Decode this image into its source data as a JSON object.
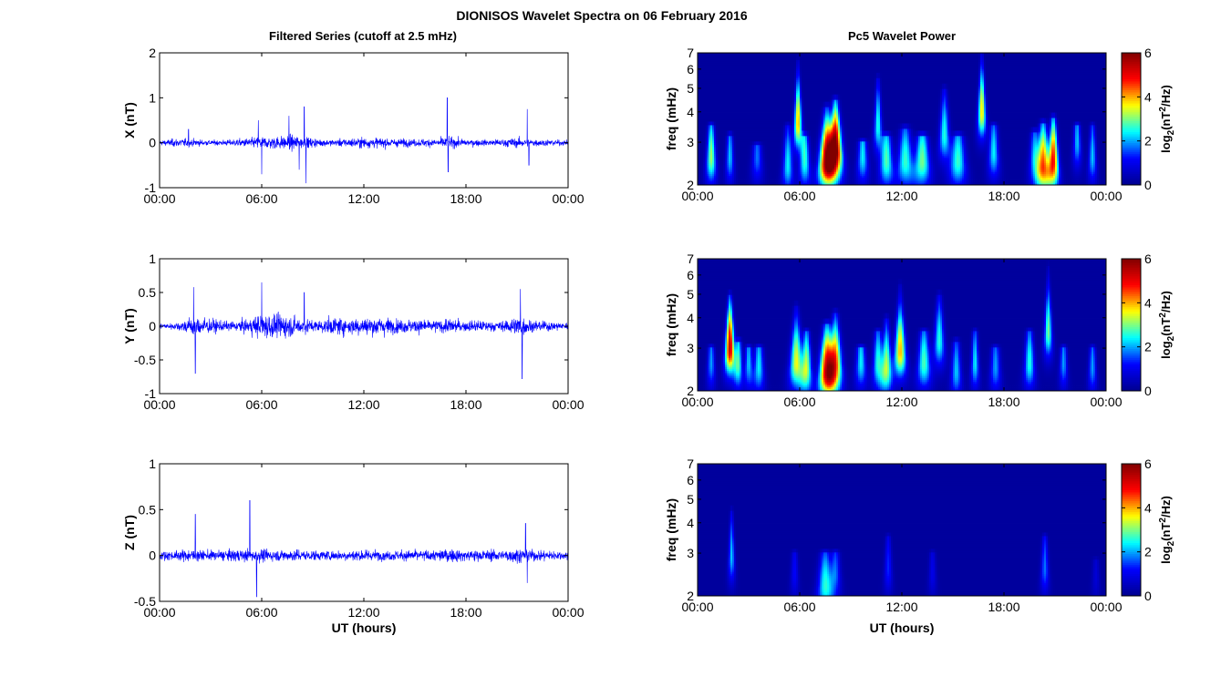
{
  "figure": {
    "title": "DIONISOS Wavelet Spectra on 06 February 2016",
    "left_column_title": "Filtered Series (cutoff at 2.5 mHz)",
    "right_column_title": "Pc5 Wavelet Power"
  },
  "colors": {
    "trace": "#0000ff",
    "colormap": [
      "#00008f",
      "#0000ff",
      "#00ffff",
      "#ffff00",
      "#ff0000",
      "#800000"
    ]
  },
  "chart_data": [
    {
      "type": "line",
      "panel": "X",
      "ylabel": "X (nT)",
      "xlabel": "",
      "x_tick_labels": [
        "00:00",
        "06:00",
        "12:00",
        "18:00",
        "00:00"
      ],
      "xlim_hours": [
        0,
        24
      ],
      "ylim": [
        -1,
        2
      ],
      "y_ticks": [
        -1,
        0,
        1,
        2
      ],
      "series": [
        {
          "noise_envelope_nT": [
            [
              0,
              0.08
            ],
            [
              1,
              0.14
            ],
            [
              2,
              0.12
            ],
            [
              3,
              0.08
            ],
            [
              4,
              0.1
            ],
            [
              5,
              0.14
            ],
            [
              6,
              0.2
            ],
            [
              7,
              0.22
            ],
            [
              8,
              0.25
            ],
            [
              9,
              0.15
            ],
            [
              10,
              0.1
            ],
            [
              11,
              0.14
            ],
            [
              12,
              0.18
            ],
            [
              13,
              0.16
            ],
            [
              14,
              0.14
            ],
            [
              15,
              0.12
            ],
            [
              16,
              0.14
            ],
            [
              17,
              0.18
            ],
            [
              18,
              0.12
            ],
            [
              19,
              0.1
            ],
            [
              20,
              0.12
            ],
            [
              21,
              0.16
            ],
            [
              22,
              0.12
            ],
            [
              23,
              0.1
            ],
            [
              24,
              0.08
            ]
          ],
          "spikes": [
            [
              1.7,
              0.3
            ],
            [
              5.8,
              0.5
            ],
            [
              6.0,
              -0.7
            ],
            [
              7.6,
              0.6
            ],
            [
              8.2,
              -0.6
            ],
            [
              8.5,
              0.8
            ],
            [
              8.6,
              -0.9
            ],
            [
              16.9,
              1.0
            ],
            [
              16.95,
              -0.65
            ],
            [
              21.6,
              0.75
            ],
            [
              21.7,
              -0.5
            ]
          ]
        }
      ]
    },
    {
      "type": "line",
      "panel": "Y",
      "ylabel": "Y (nT)",
      "xlabel": "",
      "x_tick_labels": [
        "00:00",
        "06:00",
        "12:00",
        "18:00",
        "00:00"
      ],
      "xlim_hours": [
        0,
        24
      ],
      "ylim": [
        -1,
        1
      ],
      "y_ticks": [
        -1,
        -0.5,
        0,
        0.5,
        1
      ],
      "series": [
        {
          "noise_envelope_nT": [
            [
              0,
              0.06
            ],
            [
              1,
              0.08
            ],
            [
              2,
              0.22
            ],
            [
              3,
              0.16
            ],
            [
              4,
              0.1
            ],
            [
              5,
              0.14
            ],
            [
              6,
              0.28
            ],
            [
              7,
              0.26
            ],
            [
              8,
              0.22
            ],
            [
              9,
              0.12
            ],
            [
              10,
              0.18
            ],
            [
              11,
              0.2
            ],
            [
              12,
              0.18
            ],
            [
              13,
              0.22
            ],
            [
              14,
              0.14
            ],
            [
              15,
              0.16
            ],
            [
              16,
              0.12
            ],
            [
              17,
              0.16
            ],
            [
              18,
              0.12
            ],
            [
              19,
              0.12
            ],
            [
              20,
              0.1
            ],
            [
              21,
              0.22
            ],
            [
              22,
              0.12
            ],
            [
              23,
              0.1
            ],
            [
              24,
              0.08
            ]
          ],
          "spikes": [
            [
              2.0,
              0.58
            ],
            [
              2.1,
              -0.7
            ],
            [
              6.0,
              0.65
            ],
            [
              8.5,
              0.5
            ],
            [
              21.2,
              0.55
            ],
            [
              21.3,
              -0.78
            ]
          ]
        }
      ]
    },
    {
      "type": "line",
      "panel": "Z",
      "ylabel": "Z (nT)",
      "xlabel": "UT (hours)",
      "x_tick_labels": [
        "00:00",
        "06:00",
        "12:00",
        "18:00",
        "00:00"
      ],
      "xlim_hours": [
        0,
        24
      ],
      "ylim": [
        -0.5,
        1
      ],
      "y_ticks": [
        -0.5,
        0,
        0.5,
        1
      ],
      "series": [
        {
          "noise_envelope_nT": [
            [
              0,
              0.07
            ],
            [
              1,
              0.08
            ],
            [
              2,
              0.1
            ],
            [
              3,
              0.08
            ],
            [
              4,
              0.09
            ],
            [
              5,
              0.1
            ],
            [
              6,
              0.1
            ],
            [
              7,
              0.09
            ],
            [
              8,
              0.1
            ],
            [
              9,
              0.08
            ],
            [
              10,
              0.08
            ],
            [
              11,
              0.09
            ],
            [
              12,
              0.09
            ],
            [
              13,
              0.08
            ],
            [
              14,
              0.08
            ],
            [
              15,
              0.09
            ],
            [
              16,
              0.09
            ],
            [
              17,
              0.1
            ],
            [
              18,
              0.1
            ],
            [
              19,
              0.09
            ],
            [
              20,
              0.09
            ],
            [
              21,
              0.12
            ],
            [
              22,
              0.09
            ],
            [
              23,
              0.08
            ],
            [
              24,
              0.07
            ]
          ],
          "spikes": [
            [
              2.1,
              0.45
            ],
            [
              5.3,
              0.6
            ],
            [
              5.7,
              -0.45
            ],
            [
              21.5,
              0.35
            ],
            [
              21.6,
              -0.3
            ]
          ]
        }
      ]
    },
    {
      "type": "heatmap",
      "panel": "X",
      "ylabel": "freq (mHz)",
      "xlabel": "",
      "x_tick_labels": [
        "00:00",
        "06:00",
        "12:00",
        "18:00",
        "00:00"
      ],
      "xlim_hours": [
        0,
        24
      ],
      "ylim_mHz": [
        2,
        7
      ],
      "y_scale": "log",
      "y_ticks": [
        2,
        3,
        4,
        5,
        6,
        7
      ],
      "colorbar": {
        "label": "log2(nT^2/Hz)",
        "label_base": "log",
        "label_sub": "2",
        "label_open": "(nT",
        "label_sup": "2",
        "label_close": "/Hz)",
        "range": [
          0,
          6
        ],
        "ticks": [
          0,
          2,
          4,
          6
        ]
      },
      "grid": false,
      "blobs": [
        {
          "t": 0.8,
          "f": 2.6,
          "amp": 3.0,
          "tw": 0.18,
          "fh": 3.5
        },
        {
          "t": 1.9,
          "f": 2.6,
          "amp": 2.0,
          "tw": 0.15,
          "fh": 3.2
        },
        {
          "t": 3.5,
          "f": 2.6,
          "amp": 1.6,
          "tw": 0.2,
          "fh": 2.9
        },
        {
          "t": 5.3,
          "f": 2.4,
          "amp": 2.2,
          "tw": 0.2,
          "fh": 3.5
        },
        {
          "t": 5.9,
          "f": 3.6,
          "amp": 3.8,
          "tw": 0.15,
          "fh": 6.5
        },
        {
          "t": 6.3,
          "f": 2.5,
          "amp": 2.4,
          "tw": 0.2,
          "fh": 3.2
        },
        {
          "t": 7.6,
          "f": 2.5,
          "amp": 5.5,
          "tw": 0.3,
          "fh": 4.2
        },
        {
          "t": 8.1,
          "f": 2.8,
          "amp": 5.8,
          "tw": 0.25,
          "fh": 4.5
        },
        {
          "t": 9.7,
          "f": 2.6,
          "amp": 2.2,
          "tw": 0.2,
          "fh": 3.0
        },
        {
          "t": 10.6,
          "f": 3.5,
          "amp": 2.4,
          "tw": 0.15,
          "fh": 5.5
        },
        {
          "t": 11.1,
          "f": 2.5,
          "amp": 2.6,
          "tw": 0.25,
          "fh": 3.2
        },
        {
          "t": 12.2,
          "f": 2.5,
          "amp": 2.5,
          "tw": 0.3,
          "fh": 3.4
        },
        {
          "t": 13.2,
          "f": 2.5,
          "amp": 2.8,
          "tw": 0.3,
          "fh": 3.2
        },
        {
          "t": 14.5,
          "f": 3.2,
          "amp": 2.4,
          "tw": 0.2,
          "fh": 5.0
        },
        {
          "t": 15.3,
          "f": 2.5,
          "amp": 2.5,
          "tw": 0.3,
          "fh": 3.2
        },
        {
          "t": 16.7,
          "f": 4.0,
          "amp": 3.6,
          "tw": 0.15,
          "fh": 7.0
        },
        {
          "t": 17.4,
          "f": 2.7,
          "amp": 2.2,
          "tw": 0.2,
          "fh": 3.5
        },
        {
          "t": 19.8,
          "f": 2.6,
          "amp": 2.0,
          "tw": 0.2,
          "fh": 3.3
        },
        {
          "t": 20.3,
          "f": 2.4,
          "amp": 4.2,
          "tw": 0.25,
          "fh": 3.6
        },
        {
          "t": 20.9,
          "f": 2.5,
          "amp": 4.6,
          "tw": 0.2,
          "fh": 3.8
        },
        {
          "t": 22.3,
          "f": 3.0,
          "amp": 2.0,
          "tw": 0.15,
          "fh": 3.5
        },
        {
          "t": 23.2,
          "f": 2.6,
          "amp": 2.0,
          "tw": 0.15,
          "fh": 3.5
        }
      ]
    },
    {
      "type": "heatmap",
      "panel": "Y",
      "ylabel": "freq (mHz)",
      "xlabel": "",
      "x_tick_labels": [
        "00:00",
        "06:00",
        "12:00",
        "18:00",
        "00:00"
      ],
      "xlim_hours": [
        0,
        24
      ],
      "ylim_mHz": [
        2,
        7
      ],
      "y_scale": "log",
      "y_ticks": [
        2,
        3,
        4,
        5,
        6,
        7
      ],
      "colorbar": {
        "label": "log2(nT^2/Hz)",
        "label_base": "log",
        "label_sub": "2",
        "label_open": "(nT",
        "label_sup": "2",
        "label_close": "/Hz)",
        "range": [
          0,
          6
        ],
        "ticks": [
          0,
          2,
          4,
          6
        ]
      },
      "grid": false,
      "blobs": [
        {
          "t": 0.8,
          "f": 2.6,
          "amp": 1.8,
          "tw": 0.15,
          "fh": 3.0
        },
        {
          "t": 1.9,
          "f": 3.0,
          "amp": 5.2,
          "tw": 0.18,
          "fh": 5.0
        },
        {
          "t": 2.4,
          "f": 2.6,
          "amp": 2.4,
          "tw": 0.15,
          "fh": 3.2
        },
        {
          "t": 3.0,
          "f": 2.6,
          "amp": 2.0,
          "tw": 0.15,
          "fh": 3.0
        },
        {
          "t": 3.6,
          "f": 2.5,
          "amp": 2.2,
          "tw": 0.2,
          "fh": 3.0
        },
        {
          "t": 5.8,
          "f": 2.6,
          "amp": 3.4,
          "tw": 0.25,
          "fh": 4.5
        },
        {
          "t": 6.4,
          "f": 2.5,
          "amp": 3.0,
          "tw": 0.2,
          "fh": 3.5
        },
        {
          "t": 7.6,
          "f": 2.4,
          "amp": 5.0,
          "tw": 0.3,
          "fh": 3.8
        },
        {
          "t": 8.1,
          "f": 2.6,
          "amp": 4.0,
          "tw": 0.25,
          "fh": 4.2
        },
        {
          "t": 9.6,
          "f": 2.6,
          "amp": 2.2,
          "tw": 0.2,
          "fh": 3.0
        },
        {
          "t": 10.6,
          "f": 2.6,
          "amp": 2.4,
          "tw": 0.2,
          "fh": 3.5
        },
        {
          "t": 11.1,
          "f": 2.5,
          "amp": 3.0,
          "tw": 0.2,
          "fh": 4.0
        },
        {
          "t": 11.9,
          "f": 2.9,
          "amp": 3.8,
          "tw": 0.22,
          "fh": 5.5
        },
        {
          "t": 13.3,
          "f": 2.6,
          "amp": 2.6,
          "tw": 0.25,
          "fh": 3.5
        },
        {
          "t": 14.2,
          "f": 3.2,
          "amp": 2.4,
          "tw": 0.2,
          "fh": 5.0
        },
        {
          "t": 15.2,
          "f": 2.4,
          "amp": 2.0,
          "tw": 0.2,
          "fh": 3.2
        },
        {
          "t": 16.3,
          "f": 2.6,
          "amp": 2.2,
          "tw": 0.15,
          "fh": 3.5
        },
        {
          "t": 17.5,
          "f": 2.5,
          "amp": 1.8,
          "tw": 0.2,
          "fh": 3.0
        },
        {
          "t": 19.5,
          "f": 2.6,
          "amp": 2.4,
          "tw": 0.2,
          "fh": 3.5
        },
        {
          "t": 20.6,
          "f": 3.5,
          "amp": 2.8,
          "tw": 0.15,
          "fh": 6.5
        },
        {
          "t": 21.5,
          "f": 2.6,
          "amp": 1.8,
          "tw": 0.15,
          "fh": 3.0
        },
        {
          "t": 23.2,
          "f": 2.5,
          "amp": 1.8,
          "tw": 0.15,
          "fh": 3.0
        }
      ]
    },
    {
      "type": "heatmap",
      "panel": "Z",
      "ylabel": "freq (mHz)",
      "xlabel": "UT (hours)",
      "x_tick_labels": [
        "00:00",
        "06:00",
        "12:00",
        "18:00",
        "00:00"
      ],
      "xlim_hours": [
        0,
        24
      ],
      "ylim_mHz": [
        2,
        7
      ],
      "y_scale": "log",
      "y_ticks": [
        2,
        3,
        4,
        5,
        6,
        7
      ],
      "colorbar": {
        "label": "log2(nT^2/Hz)",
        "label_base": "log",
        "label_sub": "2",
        "label_open": "(nT",
        "label_sup": "2",
        "label_close": "/Hz)",
        "range": [
          0,
          6
        ],
        "ticks": [
          0,
          2,
          4,
          6
        ]
      },
      "grid": false,
      "blobs": [
        {
          "t": 2.0,
          "f": 2.9,
          "amp": 2.0,
          "tw": 0.12,
          "fh": 4.5
        },
        {
          "t": 5.7,
          "f": 2.5,
          "amp": 1.0,
          "tw": 0.15,
          "fh": 3.0
        },
        {
          "t": 7.5,
          "f": 2.2,
          "amp": 2.4,
          "tw": 0.3,
          "fh": 3.0
        },
        {
          "t": 8.1,
          "f": 2.5,
          "amp": 1.5,
          "tw": 0.2,
          "fh": 3.0
        },
        {
          "t": 11.2,
          "f": 2.6,
          "amp": 1.2,
          "tw": 0.15,
          "fh": 3.5
        },
        {
          "t": 13.8,
          "f": 2.5,
          "amp": 0.8,
          "tw": 0.15,
          "fh": 3.0
        },
        {
          "t": 20.4,
          "f": 2.6,
          "amp": 1.6,
          "tw": 0.15,
          "fh": 3.5
        },
        {
          "t": 23.4,
          "f": 2.4,
          "amp": 0.6,
          "tw": 0.15,
          "fh": 2.8
        }
      ]
    }
  ]
}
